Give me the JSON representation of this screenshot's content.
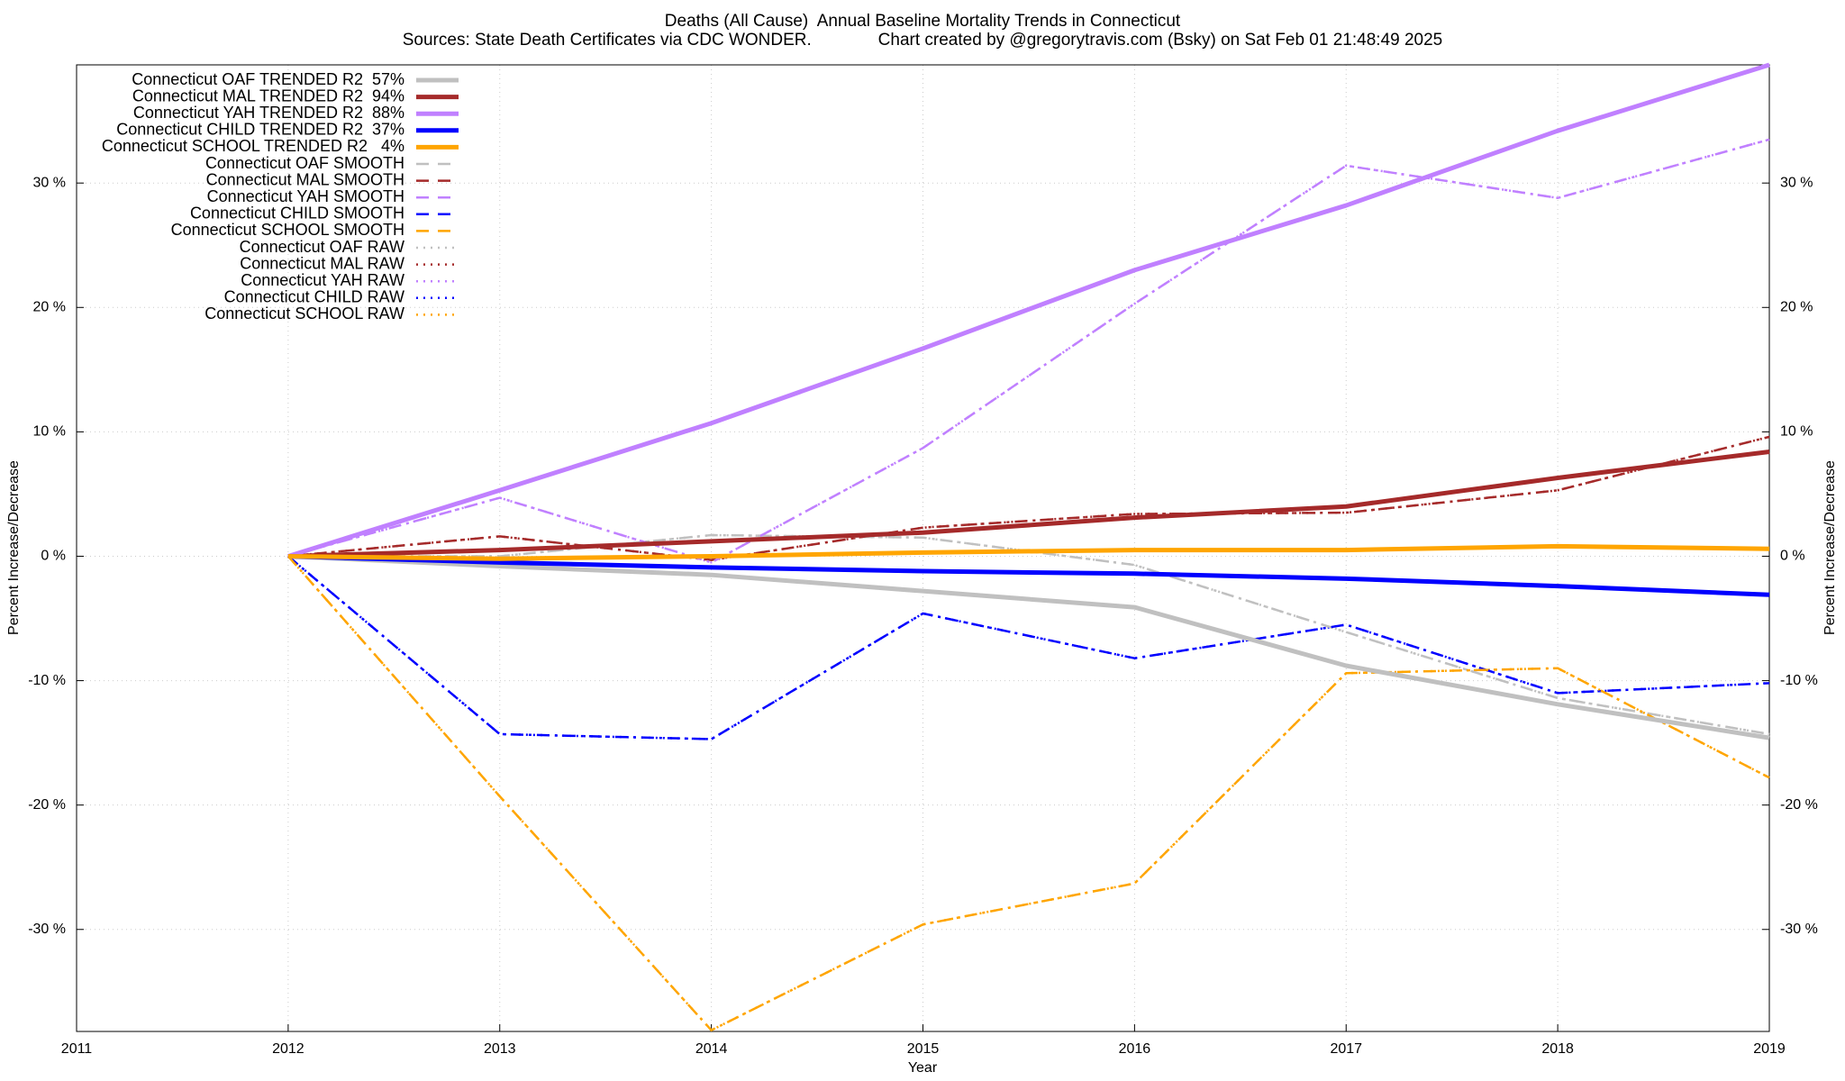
{
  "chart_data": {
    "type": "line",
    "title": "Deaths (All Cause)  Annual Baseline Mortality Trends in Connecticut",
    "subtitle": "Sources: State Death Certificates via CDC WONDER.              Chart created by @gregorytravis.com (Bsky) on Sat Feb 01 21:48:49 2025",
    "xlabel": "Year",
    "ylabel": "Percent Increase/Decrease",
    "y2label": "Percent Increase/Decrease",
    "x": [
      2012,
      2013,
      2014,
      2015,
      2016,
      2017,
      2018,
      2019
    ],
    "xlim": [
      2011,
      2019
    ],
    "xticks": [
      2011,
      2012,
      2013,
      2014,
      2015,
      2016,
      2017,
      2018,
      2019
    ],
    "ylim": [
      -38.2,
      39.5
    ],
    "yticks": [
      {
        "value": -30,
        "label": "-30 %"
      },
      {
        "value": -20,
        "label": "-20 %"
      },
      {
        "value": -10,
        "label": "-10 %"
      },
      {
        "value": 0,
        "label": "0 %"
      },
      {
        "value": 10,
        "label": "10 %"
      },
      {
        "value": 20,
        "label": "20 %"
      },
      {
        "value": 30,
        "label": "30 %"
      }
    ],
    "y2lim": [
      -38.2,
      39.5
    ],
    "y2ticks": [
      {
        "value": -30,
        "label": "-30 %"
      },
      {
        "value": -20,
        "label": "-20 %"
      },
      {
        "value": -10,
        "label": "-10 %"
      },
      {
        "value": 0,
        "label": "0 %"
      },
      {
        "value": 10,
        "label": "10 %"
      },
      {
        "value": 20,
        "label": "20 %"
      },
      {
        "value": 30,
        "label": "30 %"
      }
    ],
    "grid": true,
    "legend": "upper left",
    "series": [
      {
        "name": "Connecticut OAF TRENDED R2  57%",
        "color": "#c0c0c0",
        "style": "solid",
        "values": [
          0,
          -0.8,
          -1.5,
          -2.8,
          -4.1,
          -8.8,
          -11.9,
          -14.6
        ]
      },
      {
        "name": "Connecticut MAL TRENDED R2  94%",
        "color": "#a52a2a",
        "style": "solid",
        "values": [
          0,
          0.5,
          1.2,
          1.9,
          3.1,
          4.0,
          6.3,
          8.4
        ]
      },
      {
        "name": "Connecticut YAH TRENDED R2  88%",
        "color": "#c080ff",
        "style": "solid",
        "values": [
          0,
          5.3,
          10.7,
          16.7,
          23.0,
          28.2,
          34.2,
          39.5
        ]
      },
      {
        "name": "Connecticut CHILD TRENDED R2  37%",
        "color": "#0000ff",
        "style": "solid",
        "values": [
          0,
          -0.5,
          -0.9,
          -1.2,
          -1.4,
          -1.8,
          -2.4,
          -3.1
        ]
      },
      {
        "name": "Connecticut SCHOOL TRENDED R2   4%",
        "color": "#ffa500",
        "style": "solid",
        "values": [
          0,
          -0.2,
          0,
          0.3,
          0.5,
          0.5,
          0.8,
          0.6
        ]
      },
      {
        "name": "Connecticut OAF SMOOTH",
        "color": "#c0c0c0",
        "style": "dashdot",
        "values": [
          0,
          0,
          1.7,
          1.5,
          -0.7,
          -6.1,
          -11.4,
          -14.3
        ]
      },
      {
        "name": "Connecticut MAL SMOOTH",
        "color": "#a52a2a",
        "style": "dashdot",
        "values": [
          0,
          1.6,
          -0.3,
          2.3,
          3.4,
          3.5,
          5.3,
          9.6
        ]
      },
      {
        "name": "Connecticut YAH SMOOTH",
        "color": "#c080ff",
        "style": "dashdot",
        "values": [
          0,
          4.7,
          -0.5,
          8.7,
          20.3,
          31.4,
          28.8,
          33.5
        ]
      },
      {
        "name": "Connecticut CHILD SMOOTH",
        "color": "#0000ff",
        "style": "dashdot",
        "values": [
          0,
          -14.3,
          -14.7,
          -4.6,
          -8.2,
          -5.5,
          -11.0,
          -10.2
        ]
      },
      {
        "name": "Connecticut SCHOOL SMOOTH",
        "color": "#ffa500",
        "style": "dashdot",
        "values": [
          0,
          -19.3,
          -38.1,
          -29.6,
          -26.3,
          -9.4,
          -9.0,
          -17.8
        ]
      },
      {
        "name": "Connecticut OAF RAW",
        "color": "#c0c0c0",
        "style": "dotted",
        "values": [
          0,
          0,
          1.7,
          1.5,
          -0.7,
          -6.1,
          -11.4,
          -14.3
        ]
      },
      {
        "name": "Connecticut MAL RAW",
        "color": "#a52a2a",
        "style": "dotted",
        "values": [
          0,
          1.6,
          -0.3,
          2.3,
          3.4,
          3.5,
          5.3,
          9.6
        ]
      },
      {
        "name": "Connecticut YAH RAW",
        "color": "#c080ff",
        "style": "dotted",
        "values": [
          0,
          4.7,
          -0.5,
          8.7,
          20.3,
          31.4,
          28.8,
          33.5
        ]
      },
      {
        "name": "Connecticut CHILD RAW",
        "color": "#0000ff",
        "style": "dotted",
        "values": [
          0,
          -14.3,
          -14.7,
          -4.6,
          -8.2,
          -5.5,
          -11.0,
          -10.2
        ]
      },
      {
        "name": "Connecticut SCHOOL RAW",
        "color": "#ffa500",
        "style": "dotted",
        "values": [
          0,
          -19.3,
          -38.1,
          -29.6,
          -26.3,
          -9.4,
          -9.0,
          -17.8
        ]
      }
    ]
  }
}
